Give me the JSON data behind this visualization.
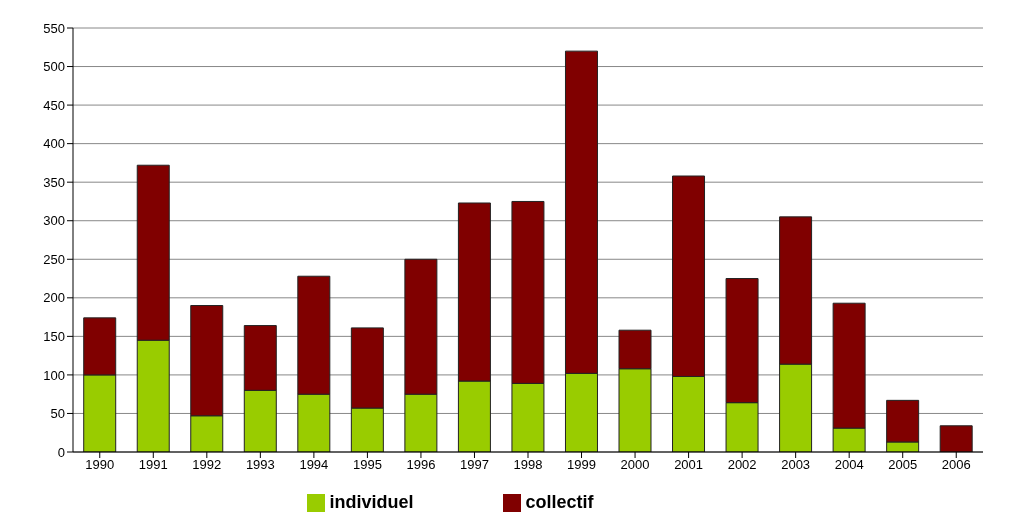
{
  "chart_data": {
    "type": "bar",
    "stacked": true,
    "categories": [
      "1990",
      "1991",
      "1992",
      "1993",
      "1994",
      "1995",
      "1996",
      "1997",
      "1998",
      "1999",
      "2000",
      "2001",
      "2002",
      "2003",
      "2004",
      "2005",
      "2006"
    ],
    "series": [
      {
        "name": "individuel",
        "color": "#99cc00",
        "values": [
          100,
          145,
          47,
          80,
          75,
          57,
          75,
          92,
          89,
          102,
          108,
          98,
          64,
          114,
          31,
          13,
          null
        ]
      },
      {
        "name": "collectif",
        "color": "#800000",
        "values": [
          74,
          227,
          143,
          84,
          153,
          104,
          175,
          231,
          236,
          418,
          50,
          260,
          161,
          191,
          162,
          54,
          34
        ]
      }
    ],
    "ylim": [
      0,
      550
    ],
    "yticks": [
      0,
      50,
      100,
      150,
      200,
      250,
      300,
      350,
      400,
      450,
      500,
      550
    ],
    "grid": "y",
    "legend": "bottom"
  }
}
